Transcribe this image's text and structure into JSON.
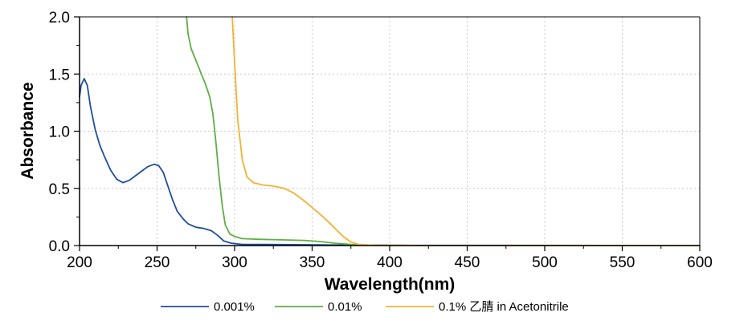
{
  "chart_data": {
    "type": "line",
    "title": "",
    "xlabel": "Wavelength(nm)",
    "ylabel": "Absorbance",
    "xlim": [
      200,
      600
    ],
    "ylim": [
      0,
      2.0
    ],
    "x_ticks": [
      200,
      250,
      300,
      350,
      400,
      450,
      500,
      550,
      600
    ],
    "y_ticks": [
      0.0,
      0.5,
      1.0,
      1.5,
      2.0
    ],
    "x_tick_labels": [
      "200",
      "250",
      "300",
      "350",
      "400",
      "450",
      "500",
      "550",
      "600"
    ],
    "y_tick_labels": [
      "0.0",
      "0.5",
      "1.0",
      "1.5",
      "2.0"
    ],
    "grid": true,
    "legend_position": "bottom",
    "series": [
      {
        "name": "0.001%",
        "color": "#1f4e9c",
        "points": [
          [
            200,
            1.3
          ],
          [
            201,
            1.4
          ],
          [
            203,
            1.46
          ],
          [
            205,
            1.4
          ],
          [
            207,
            1.22
          ],
          [
            210,
            1.02
          ],
          [
            213,
            0.88
          ],
          [
            216,
            0.78
          ],
          [
            220,
            0.66
          ],
          [
            224,
            0.58
          ],
          [
            228,
            0.55
          ],
          [
            232,
            0.57
          ],
          [
            236,
            0.61
          ],
          [
            240,
            0.65
          ],
          [
            244,
            0.69
          ],
          [
            248,
            0.71
          ],
          [
            251,
            0.7
          ],
          [
            254,
            0.64
          ],
          [
            257,
            0.52
          ],
          [
            260,
            0.4
          ],
          [
            263,
            0.3
          ],
          [
            267,
            0.23
          ],
          [
            270,
            0.19
          ],
          [
            275,
            0.16
          ],
          [
            280,
            0.15
          ],
          [
            285,
            0.13
          ],
          [
            289,
            0.09
          ],
          [
            293,
            0.04
          ],
          [
            298,
            0.02
          ],
          [
            305,
            0.01
          ],
          [
            320,
            0.01
          ],
          [
            360,
            0.005
          ],
          [
            400,
            0.002
          ],
          [
            600,
            0.0
          ]
        ]
      },
      {
        "name": "0.01%",
        "color": "#5fae45",
        "points": [
          [
            269,
            2.0
          ],
          [
            270,
            1.85
          ],
          [
            272,
            1.72
          ],
          [
            275,
            1.62
          ],
          [
            278,
            1.52
          ],
          [
            281,
            1.42
          ],
          [
            284,
            1.3
          ],
          [
            286,
            1.15
          ],
          [
            288,
            0.9
          ],
          [
            290,
            0.6
          ],
          [
            292,
            0.35
          ],
          [
            294,
            0.18
          ],
          [
            297,
            0.1
          ],
          [
            300,
            0.08
          ],
          [
            305,
            0.06
          ],
          [
            315,
            0.055
          ],
          [
            330,
            0.05
          ],
          [
            345,
            0.045
          ],
          [
            355,
            0.035
          ],
          [
            365,
            0.02
          ],
          [
            375,
            0.01
          ],
          [
            390,
            0.003
          ],
          [
            420,
            0.0
          ],
          [
            600,
            0.0
          ]
        ]
      },
      {
        "name": "0.1% 乙腈 in Acetonitrile",
        "color": "#f2b233",
        "points": [
          [
            298.5,
            2.0
          ],
          [
            300,
            1.6
          ],
          [
            302,
            1.1
          ],
          [
            305,
            0.75
          ],
          [
            308,
            0.6
          ],
          [
            312,
            0.55
          ],
          [
            318,
            0.53
          ],
          [
            325,
            0.52
          ],
          [
            332,
            0.5
          ],
          [
            338,
            0.46
          ],
          [
            345,
            0.39
          ],
          [
            352,
            0.31
          ],
          [
            358,
            0.24
          ],
          [
            364,
            0.16
          ],
          [
            370,
            0.08
          ],
          [
            375,
            0.03
          ],
          [
            380,
            0.01
          ],
          [
            390,
            0.002
          ],
          [
            420,
            0.0
          ],
          [
            600,
            0.0
          ]
        ]
      }
    ]
  }
}
